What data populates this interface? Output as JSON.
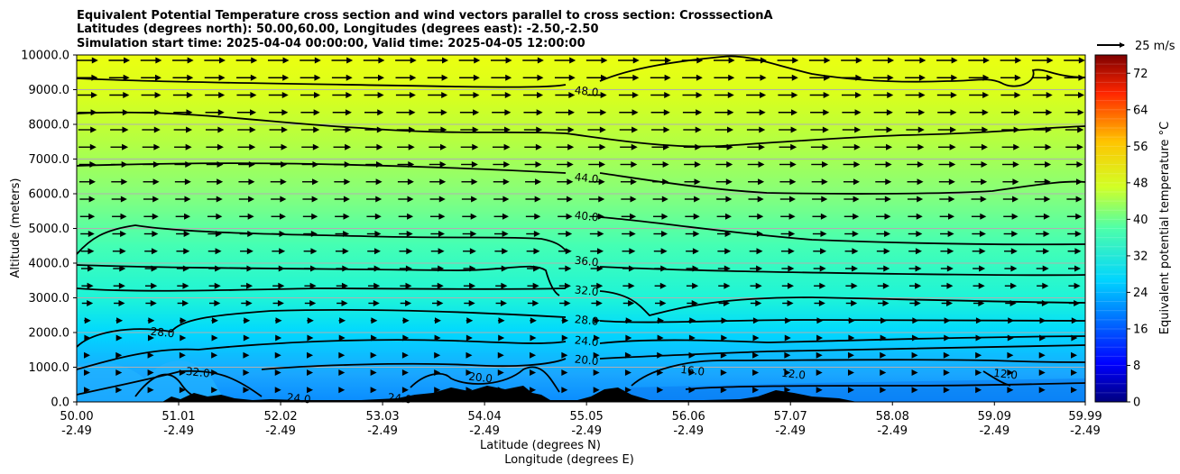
{
  "chart_data": {
    "type": "contour-cross-section",
    "title_lines": [
      "Equivalent Potential Temperature cross section and wind vectors parallel to cross section: CrosssectionA",
      "Latitudes (degrees north): 50.00,60.00, Longitudes (degrees east): -2.50,-2.50",
      "Simulation start time: 2025-04-04 00:00:00, Valid time: 2025-04-05 12:00:00"
    ],
    "xlabel_line1": "Latitude (degrees N)",
    "xlabel_line2": "Longitude (degrees E)",
    "ylabel": "Altitude (meters)",
    "x_ticks_lat": [
      "50.00",
      "51.01",
      "52.02",
      "53.03",
      "54.04",
      "55.05",
      "56.06",
      "57.07",
      "58.08",
      "59.09",
      "59.99"
    ],
    "x_ticks_lon": [
      "-2.49",
      "-2.49",
      "-2.49",
      "-2.49",
      "-2.49",
      "-2.49",
      "-2.49",
      "-2.49",
      "-2.49",
      "-2.49",
      "-2.49"
    ],
    "y_ticks": [
      "0.0",
      "1000.0",
      "2000.0",
      "3000.0",
      "4000.0",
      "5000.0",
      "6000.0",
      "7000.0",
      "8000.0",
      "9000.0",
      "10000.0"
    ],
    "ylim": [
      0,
      10000
    ],
    "colorbar": {
      "label": "Equivalent potential temperature °C",
      "ticks": [
        "0",
        "8",
        "16",
        "24",
        "32",
        "40",
        "48",
        "56",
        "64",
        "72"
      ],
      "range": [
        0,
        76
      ]
    },
    "wind_key_label": "25 m/s",
    "contour_levels": [
      12,
      16,
      20,
      24,
      28,
      32,
      36,
      40,
      44,
      48
    ],
    "contour_labels": [
      {
        "text": "48.0",
        "lat": 55.05,
        "alt": 8950
      },
      {
        "text": "44.0",
        "lat": 55.05,
        "alt": 6450
      },
      {
        "text": "40.0",
        "lat": 55.05,
        "alt": 5350
      },
      {
        "text": "36.0",
        "lat": 55.05,
        "alt": 4050
      },
      {
        "text": "32.0",
        "lat": 55.05,
        "alt": 3200
      },
      {
        "text": "28.0",
        "lat": 55.05,
        "alt": 2350
      },
      {
        "text": "24.0",
        "lat": 55.05,
        "alt": 1750
      },
      {
        "text": "20.0",
        "lat": 55.05,
        "alt": 1200
      },
      {
        "text": "28.0",
        "lat": 50.85,
        "alt": 2000
      },
      {
        "text": "32.0",
        "lat": 51.2,
        "alt": 850
      },
      {
        "text": "24.0",
        "lat": 52.2,
        "alt": 100
      },
      {
        "text": "24.0",
        "lat": 53.2,
        "alt": 100
      },
      {
        "text": "20.0",
        "lat": 54.0,
        "alt": 700
      },
      {
        "text": "16.0",
        "lat": 56.1,
        "alt": 900
      },
      {
        "text": "12.0",
        "lat": 57.1,
        "alt": 800
      },
      {
        "text": "12.0",
        "lat": 59.2,
        "alt": 800
      }
    ]
  }
}
